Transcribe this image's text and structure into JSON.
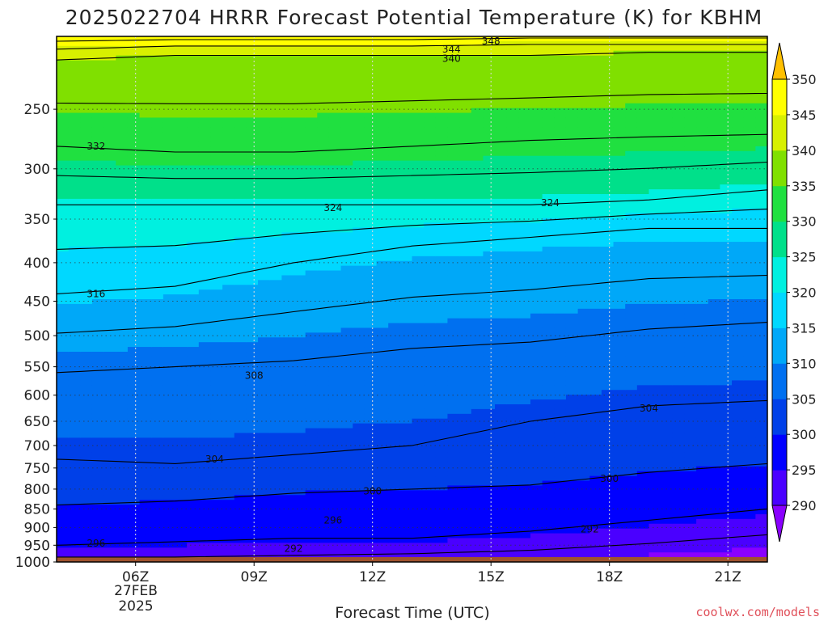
{
  "chart_data": {
    "type": "heatmap",
    "title": "2025022704 HRRR Forecast Potential Temperature (K) for KBHM",
    "xlabel": "Forecast Time (UTC)",
    "ylabel": "",
    "x_ticks": [
      "06Z",
      "09Z",
      "12Z",
      "15Z",
      "18Z",
      "21Z"
    ],
    "x_tick_values": [
      6,
      9,
      12,
      15,
      18,
      21
    ],
    "x_date_label": [
      "27FEB",
      "2025"
    ],
    "xlim": [
      4,
      22
    ],
    "y_ticks": [
      250,
      300,
      350,
      400,
      450,
      500,
      550,
      600,
      650,
      700,
      750,
      800,
      850,
      900,
      950,
      1000
    ],
    "ylim": [
      1000,
      200
    ],
    "y_scale": "log (pressure, hPa)",
    "colorbar": {
      "ticks": [
        290,
        295,
        300,
        305,
        310,
        315,
        320,
        325,
        330,
        335,
        340,
        345,
        350
      ],
      "colors": [
        "#8a00ff",
        "#4a00ff",
        "#0000ff",
        "#0040e8",
        "#0070f0",
        "#00a8f8",
        "#00d8ff",
        "#00f0e0",
        "#00e08a",
        "#20e040",
        "#80e000",
        "#d8f000",
        "#ffff00",
        "#ffc000"
      ],
      "extend": "both"
    },
    "contour_levels": [
      292,
      296,
      300,
      304,
      308,
      312,
      316,
      320,
      324,
      328,
      332,
      336,
      340,
      344,
      348
    ],
    "isentropes_pressure_hPa": {
      "x_hours": [
        4,
        7,
        10,
        13,
        16,
        19,
        22
      ],
      "292": [
        985,
        985,
        980,
        975,
        965,
        945,
        920
      ],
      "296": [
        950,
        940,
        930,
        930,
        910,
        880,
        850
      ],
      "300": [
        840,
        830,
        810,
        800,
        790,
        760,
        740
      ],
      "304": [
        730,
        740,
        720,
        700,
        650,
        620,
        610
      ],
      "308": [
        560,
        550,
        540,
        520,
        510,
        490,
        480
      ],
      "316": [
        440,
        430,
        400,
        380,
        370,
        360,
        360
      ],
      "324": [
        335,
        335,
        335,
        335,
        335,
        330,
        320
      ],
      "332": [
        280,
        285,
        285,
        280,
        275,
        272,
        270
      ],
      "340": [
        215,
        212,
        212,
        212,
        212,
        210,
        210
      ],
      "344": [
        208,
        206,
        206,
        206,
        205,
        205,
        205
      ],
      "348": [
        203,
        202,
        202,
        202,
        201,
        201,
        201
      ]
    },
    "contour_labels": [
      {
        "text": "348",
        "x": 15,
        "p": 203
      },
      {
        "text": "344",
        "x": 14,
        "p": 208
      },
      {
        "text": "340",
        "x": 14,
        "p": 214
      },
      {
        "text": "332",
        "x": 5,
        "p": 280
      },
      {
        "text": "324",
        "x": 11,
        "p": 338
      },
      {
        "text": "324",
        "x": 16.5,
        "p": 333
      },
      {
        "text": "316",
        "x": 5,
        "p": 440
      },
      {
        "text": "308",
        "x": 9,
        "p": 565
      },
      {
        "text": "304",
        "x": 19,
        "p": 625
      },
      {
        "text": "304",
        "x": 8,
        "p": 730
      },
      {
        "text": "300",
        "x": 12,
        "p": 805
      },
      {
        "text": "300",
        "x": 18,
        "p": 775
      },
      {
        "text": "296",
        "x": 11,
        "p": 880
      },
      {
        "text": "292",
        "x": 17.5,
        "p": 905
      },
      {
        "text": "296",
        "x": 5,
        "p": 945
      },
      {
        "text": "292",
        "x": 10,
        "p": 960
      }
    ],
    "grid": true
  },
  "credit": "coolwx.com/models"
}
